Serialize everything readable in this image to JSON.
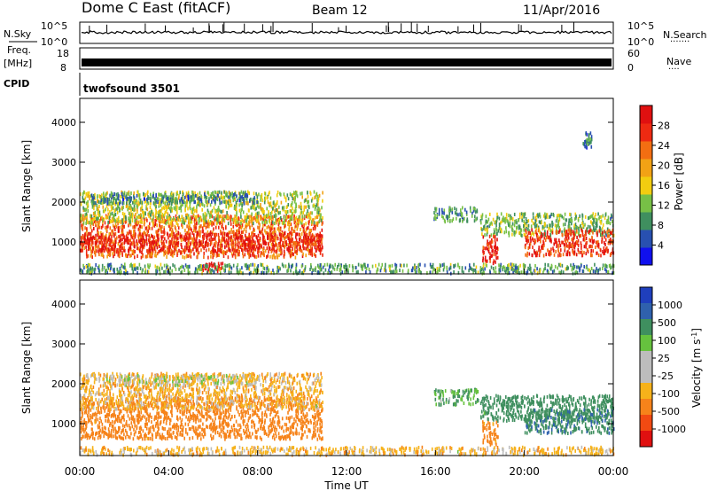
{
  "header": {
    "station": "Dome C East (fitACF)",
    "beam": "Beam 12",
    "date": "11/Apr/2016"
  },
  "panels": {
    "nsky": {
      "label": "N.Sky",
      "ticks_left": [
        "10^5",
        "10^0"
      ],
      "ticks_right": [
        "10^5",
        "10^0"
      ],
      "right_label": "N.Search",
      "right_label_dots": "·······"
    },
    "freq": {
      "label_top": "Freq.",
      "label_bottom": "[MHz]",
      "ticks_left": [
        "18",
        "8"
      ],
      "ticks_right": [
        "60",
        "0"
      ],
      "right_label": "Nave",
      "right_label_dots": "····"
    },
    "cpid": {
      "label": "CPID",
      "value": "twofsound 3501"
    }
  },
  "time_axis": {
    "label": "Time UT",
    "ticks": [
      "00:00",
      "04:00",
      "08:00",
      "12:00",
      "16:00",
      "20:00",
      "00:00"
    ]
  },
  "colors": {
    "power_scale": [
      "#1010ee",
      "#2850b0",
      "#3f8f5f",
      "#77c046",
      "#f2cd10",
      "#f2a215",
      "#f36e12",
      "#ee2a12",
      "#e01010"
    ],
    "velocity_scale": [
      "#e01010",
      "#f24a12",
      "#f6831a",
      "#f6b21a",
      "#bdbdbd",
      "#bdbdbd",
      "#66c23e",
      "#3f8f5f",
      "#2f61ad",
      "#1f3fbd"
    ]
  },
  "chart_data": [
    {
      "type": "heatmap",
      "name": "Power",
      "xlabel": "",
      "ylabel": "Slant Range [km]",
      "yticks": [
        "1000",
        "2000",
        "3000",
        "4000"
      ],
      "xlim": [
        0,
        24
      ],
      "ylim": [
        200,
        4600
      ],
      "colorbar": {
        "label": "Power [dB]",
        "ticks": [
          "4",
          "8",
          "12",
          "16",
          "20",
          "24",
          "28"
        ],
        "range": [
          0,
          32
        ]
      },
      "echo_regions": [
        {
          "t0": 0.0,
          "t1": 10.9,
          "r0": 650,
          "r1": 1700,
          "value": 24
        },
        {
          "t0": 0.0,
          "t1": 10.9,
          "r0": 800,
          "r1": 1250,
          "value": 28
        },
        {
          "t0": 0.0,
          "t1": 10.9,
          "r0": 1500,
          "r1": 2300,
          "value": 14
        },
        {
          "t0": 0.5,
          "t1": 8.0,
          "r0": 2000,
          "r1": 2250,
          "value": 8
        },
        {
          "t0": 5.5,
          "t1": 6.5,
          "r0": 300,
          "r1": 520,
          "value": 30
        },
        {
          "t0": 15.9,
          "t1": 17.9,
          "r0": 1550,
          "r1": 1900,
          "value": 9
        },
        {
          "t0": 18.0,
          "t1": 24.0,
          "r0": 1200,
          "r1": 1750,
          "value": 12
        },
        {
          "t0": 20.0,
          "t1": 24.0,
          "r0": 700,
          "r1": 1350,
          "value": 27
        },
        {
          "t0": 18.1,
          "t1": 18.8,
          "r0": 500,
          "r1": 1200,
          "value": 28
        },
        {
          "t0": 0.0,
          "t1": 24.0,
          "r0": 250,
          "r1": 480,
          "value": 10
        },
        {
          "t0": 22.6,
          "t1": 23.0,
          "r0": 3400,
          "r1": 3800,
          "value": 8
        }
      ]
    },
    {
      "type": "heatmap",
      "name": "Velocity",
      "xlabel": "Time UT",
      "ylabel": "Slant Range [km]",
      "yticks": [
        "1000",
        "2000",
        "3000",
        "4000"
      ],
      "xlim": [
        0,
        24
      ],
      "ylim": [
        200,
        4600
      ],
      "colorbar": {
        "label": "Velocity [m s",
        "label_sup": "-1",
        "label_end": "]",
        "ticks": [
          "1000",
          "500",
          "100",
          "25",
          "-25",
          "-100",
          "-500",
          "-1000"
        ]
      },
      "echo_regions": [
        {
          "t0": 0.0,
          "t1": 10.9,
          "r0": 650,
          "r1": 1700,
          "value": -300
        },
        {
          "t0": 0.0,
          "t1": 10.9,
          "r0": 1400,
          "r1": 2300,
          "value": -60
        },
        {
          "t0": 1.0,
          "t1": 8.0,
          "r0": 2000,
          "r1": 2250,
          "value": 0
        },
        {
          "t0": 15.9,
          "t1": 17.9,
          "r0": 1500,
          "r1": 1900,
          "value": 100
        },
        {
          "t0": 18.0,
          "t1": 24.0,
          "r0": 1100,
          "r1": 1750,
          "value": 300
        },
        {
          "t0": 20.0,
          "t1": 24.0,
          "r0": 800,
          "r1": 1400,
          "value": 400
        },
        {
          "t0": 18.1,
          "t1": 18.8,
          "r0": 500,
          "r1": 1100,
          "value": -200
        },
        {
          "t0": 0.0,
          "t1": 24.0,
          "r0": 250,
          "r1": 450,
          "value": -60
        }
      ]
    }
  ]
}
